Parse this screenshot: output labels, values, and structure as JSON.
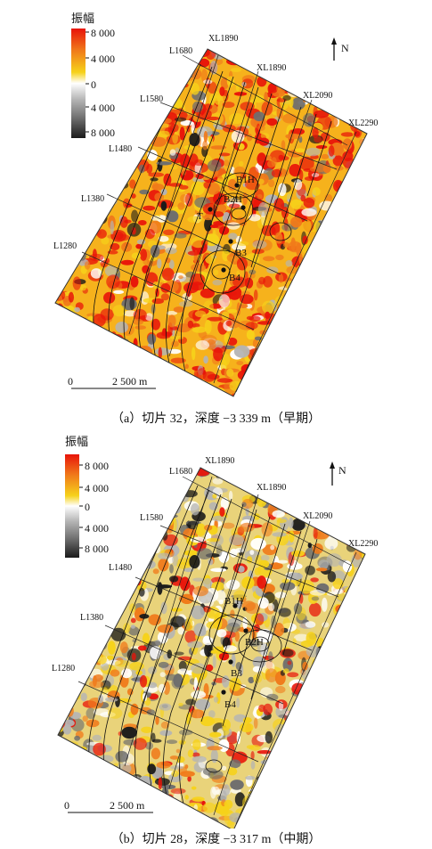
{
  "colors": {
    "colormap": [
      "#e8140a",
      "#f07a1a",
      "#f6d21a",
      "#ffffff",
      "#b4b4b4",
      "#6e6e6e",
      "#1a1a1a"
    ]
  },
  "panels": [
    {
      "id": "a",
      "legend": {
        "title": "振幅",
        "ticks": [
          "8 000",
          "4 000",
          "0",
          "4 000",
          "8 000"
        ]
      },
      "north_label": "N",
      "scale_bar": {
        "start": "0",
        "end": "2 500 m"
      },
      "lines": [
        "L1680",
        "L1580",
        "L1480",
        "L1380",
        "L1280"
      ],
      "crosslines": [
        "XL1890",
        "XL1890",
        "XL2090",
        "XL2290"
      ],
      "wells": [
        {
          "name": "B1H"
        },
        {
          "name": "B2H"
        },
        {
          "name": "T"
        },
        {
          "name": "B3"
        },
        {
          "name": "B4"
        }
      ],
      "amplitude_tendency": "warm",
      "caption": "（a）切片 32，深度 −3 339 m（早期）"
    },
    {
      "id": "b",
      "legend": {
        "title": "振幅",
        "ticks": [
          "8 000",
          "4 000",
          "0",
          "4 000",
          "8 000"
        ]
      },
      "north_label": "N",
      "scale_bar": {
        "start": "0",
        "end": "2 500 m"
      },
      "lines": [
        "L1680",
        "L1580",
        "L1480",
        "L1380",
        "L1280"
      ],
      "crosslines": [
        "XL1890",
        "XL1890",
        "XL2090",
        "XL2290"
      ],
      "wells": [
        {
          "name": "B1H"
        },
        {
          "name": "B2H"
        },
        {
          "name": "B3"
        },
        {
          "name": "B4"
        }
      ],
      "amplitude_tendency": "mixed",
      "caption": "（b）切片 28，深度 −3 317 m（中期）"
    }
  ]
}
